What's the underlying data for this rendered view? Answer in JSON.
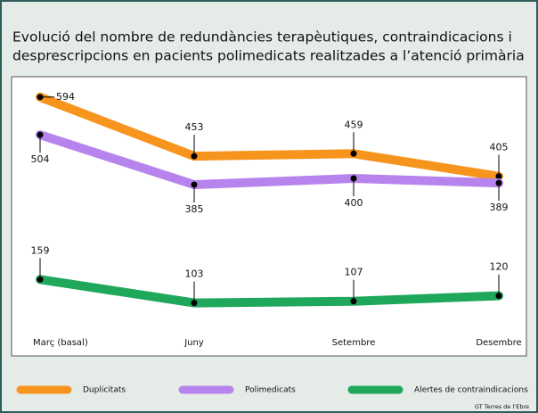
{
  "chart_data": {
    "type": "line",
    "title": "Evolució del nombre de redundàncies terapèutiques, contraindicacions i desprescripcions en pacients polimedicats realitzades a l’atenció primària",
    "title_lines": [
      "Evolució del nombre de redundàncies terapèutiques, contraindicacions i",
      "desprescripcions en pacients polimedicats realitzades a l’atenció primària"
    ],
    "categories": [
      "Març (basal)",
      "Juny",
      "Setembre",
      "Desembre"
    ],
    "series": [
      {
        "name": "Duplicitats",
        "color": "#f7941d",
        "values": [
          594,
          453,
          459,
          405
        ]
      },
      {
        "name": "Polimedicats",
        "color": "#b784ee",
        "values": [
          504,
          385,
          400,
          389
        ]
      },
      {
        "name": "Alertes de contraindicacions",
        "color": "#1fa75c",
        "values": [
          159,
          103,
          107,
          120
        ]
      }
    ],
    "source": "GT Terres de l’Ebre"
  }
}
